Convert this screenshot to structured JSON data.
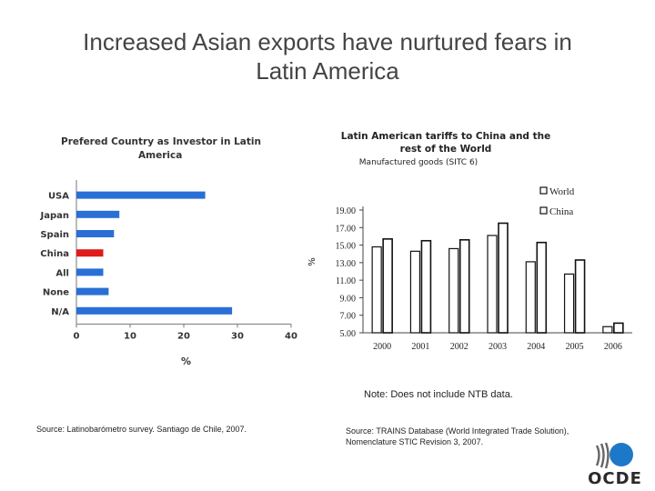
{
  "slide": {
    "title_line1": "Increased Asian exports have nurtured fears in",
    "title_line2": "Latin America",
    "note": "Note: Does not include NTB data.",
    "source_left": "Source: Latinobarómetro survey. Santiago de Chile, 2007.",
    "source_right": "Source: TRAINS Database (World Integrated Trade Solution), Nomenclature STIC Revision 3, 2007.",
    "logo_text": "OCDE"
  },
  "colors": {
    "bar_blue": "#2a6fd6",
    "bar_red": "#e01b1b",
    "logo_blue": "#1e78c8"
  },
  "chart_data": [
    {
      "type": "bar",
      "orientation": "horizontal",
      "title_line1": "Prefered Country as Investor in Latin",
      "title_line2": "America",
      "categories": [
        "USA",
        "Japan",
        "Spain",
        "China",
        "All",
        "None",
        "N/A"
      ],
      "values": [
        24,
        8,
        7,
        5,
        5,
        6,
        29
      ],
      "highlight": "China",
      "xlabel": "%",
      "xlim": [
        0,
        40
      ],
      "xticks": [
        "0",
        "10",
        "20",
        "30",
        "40"
      ]
    },
    {
      "type": "bar",
      "title_line1": "Latin American tariffs to China and the",
      "title_line2": "rest of the World",
      "subtitle": "Manufactured goods (SITC 6)",
      "ylabel": "%",
      "ylim": [
        5,
        19
      ],
      "yticks": [
        "19.00",
        "17.00",
        "15.00",
        "13.00",
        "11.00",
        "9.00",
        "7.00",
        "5.00"
      ],
      "categories": [
        "2000",
        "2001",
        "2002",
        "2003",
        "2004",
        "2005",
        "2006"
      ],
      "series": [
        {
          "name": "World",
          "values": [
            14.8,
            14.3,
            14.6,
            16.1,
            13.1,
            11.7,
            5.7
          ]
        },
        {
          "name": "China",
          "values": [
            15.7,
            15.5,
            15.6,
            17.5,
            15.3,
            13.3,
            6.1
          ]
        }
      ],
      "legend": [
        "World",
        "China"
      ],
      "legend_position": "top-right"
    }
  ]
}
